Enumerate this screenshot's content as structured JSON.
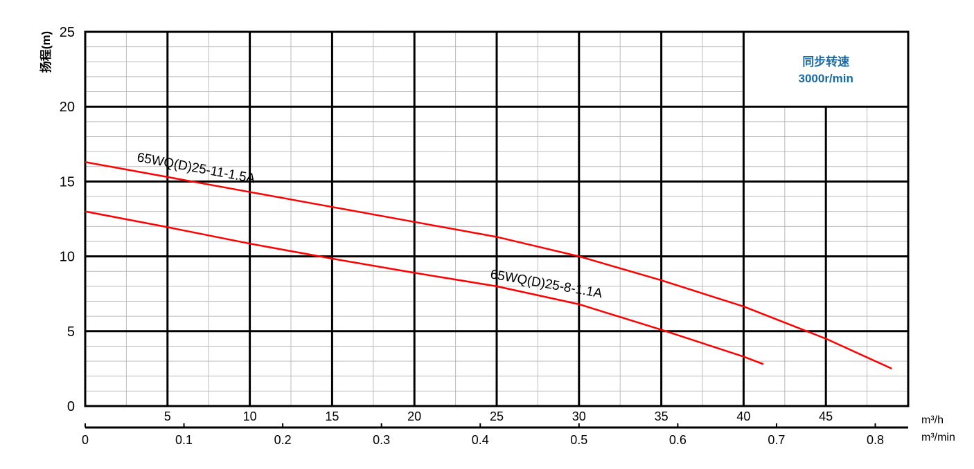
{
  "chart_data": {
    "type": "line",
    "ylabel": "扬程(m)",
    "xlabel": "m³/h",
    "x2label": "m³/min",
    "xlim": [
      0,
      50
    ],
    "ylim": [
      0,
      25
    ],
    "yticks": [
      0,
      5,
      10,
      15,
      20,
      25
    ],
    "xticks": [
      5,
      10,
      15,
      20,
      25,
      30,
      35,
      40,
      45
    ],
    "x2ticks": [
      "0",
      "0.1",
      "0.2",
      "0.3",
      "0.4",
      "0.5",
      "0.6",
      "0.7",
      "0.8"
    ],
    "grid": true,
    "annotation": {
      "line1": "同步转速",
      "line2": "3000r/min",
      "color": "#1a6aa0"
    },
    "series_color": "#ff0000",
    "series": [
      {
        "name": "65WQ(D)25-11-1.5A",
        "x": [
          0,
          5,
          10,
          15,
          20,
          25,
          30,
          35,
          40,
          45,
          49
        ],
        "y": [
          16.3,
          15.3,
          14.3,
          13.3,
          12.3,
          11.3,
          10.0,
          8.4,
          6.65,
          4.5,
          2.5
        ]
      },
      {
        "name": "65WQ(D)25-8-1.1A",
        "x": [
          0,
          5,
          10,
          15,
          20,
          25,
          30,
          35,
          40,
          41.2
        ],
        "y": [
          13.0,
          11.95,
          10.85,
          9.85,
          8.9,
          8.0,
          6.8,
          5.1,
          3.3,
          2.8
        ]
      }
    ]
  }
}
